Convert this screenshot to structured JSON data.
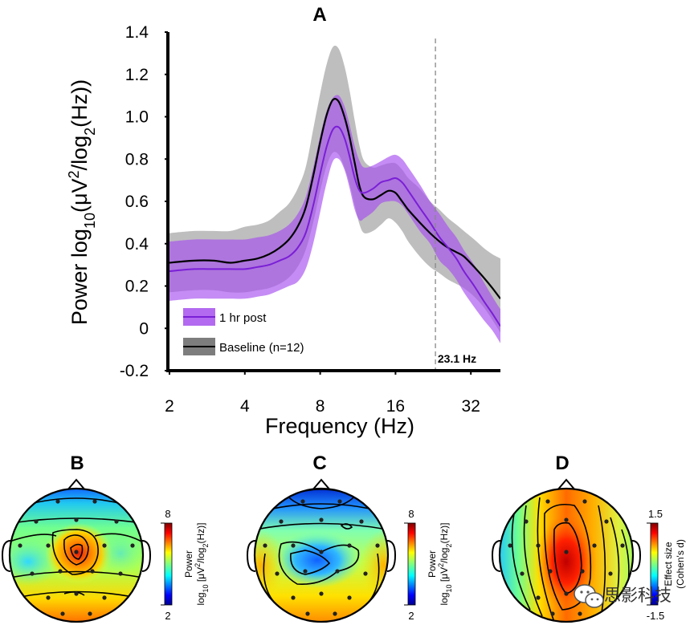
{
  "chart_data": [
    {
      "panel": "A",
      "type": "line",
      "xlabel": "Frequency (Hz)",
      "ylabel_parts": [
        "Power log",
        "10",
        "(μV",
        "2",
        "/log",
        "2",
        "(Hz))"
      ],
      "x_scale": "log2",
      "xlim": [
        2,
        42
      ],
      "ylim": [
        -0.2,
        1.4
      ],
      "xticks": [
        "2",
        "4",
        "8",
        "16",
        "32"
      ],
      "yticks": [
        "-0.2",
        "0",
        "0.2",
        "0.4",
        "0.6",
        "0.8",
        "1.0",
        "1.2",
        "1.4"
      ],
      "marker": {
        "x": 23.1,
        "label": "23.1 Hz",
        "style": "dashed"
      },
      "series": [
        {
          "name": "Baseline (n=12)",
          "color": "#000000",
          "band_color": "#b3b3b3",
          "x": [
            2,
            2.5,
            3,
            3.5,
            4,
            4.5,
            5,
            5.5,
            6,
            6.5,
            7,
            7.5,
            8,
            8.5,
            9,
            9.5,
            10,
            10.5,
            11,
            11.5,
            12,
            13,
            14,
            15,
            16,
            17,
            18,
            20,
            22,
            24,
            26,
            28,
            30,
            33,
            36,
            39,
            42
          ],
          "mean": [
            0.31,
            0.32,
            0.32,
            0.31,
            0.32,
            0.33,
            0.35,
            0.38,
            0.42,
            0.48,
            0.57,
            0.72,
            0.88,
            1.01,
            1.08,
            1.07,
            1.0,
            0.9,
            0.78,
            0.67,
            0.62,
            0.61,
            0.63,
            0.65,
            0.64,
            0.6,
            0.56,
            0.5,
            0.45,
            0.41,
            0.38,
            0.36,
            0.34,
            0.29,
            0.24,
            0.19,
            0.14
          ],
          "upper": [
            0.45,
            0.46,
            0.46,
            0.46,
            0.48,
            0.49,
            0.51,
            0.55,
            0.59,
            0.66,
            0.76,
            0.94,
            1.11,
            1.25,
            1.33,
            1.32,
            1.24,
            1.12,
            0.98,
            0.86,
            0.79,
            0.76,
            0.77,
            0.78,
            0.78,
            0.75,
            0.71,
            0.66,
            0.6,
            0.56,
            0.52,
            0.49,
            0.46,
            0.42,
            0.38,
            0.35,
            0.33
          ],
          "lower": [
            0.17,
            0.18,
            0.18,
            0.17,
            0.17,
            0.18,
            0.19,
            0.21,
            0.24,
            0.29,
            0.37,
            0.5,
            0.65,
            0.77,
            0.83,
            0.82,
            0.76,
            0.68,
            0.58,
            0.49,
            0.45,
            0.46,
            0.49,
            0.52,
            0.5,
            0.46,
            0.41,
            0.34,
            0.29,
            0.26,
            0.23,
            0.21,
            0.19,
            0.15,
            0.1,
            0.04,
            -0.02
          ]
        },
        {
          "name": "1 hr post",
          "color": "#7a1fd6",
          "band_color": "#b36af0",
          "x": [
            2,
            2.5,
            3,
            3.5,
            4,
            4.5,
            5,
            5.5,
            6,
            6.5,
            7,
            7.5,
            8,
            8.5,
            9,
            9.5,
            10,
            10.5,
            11,
            11.5,
            12,
            13,
            14,
            15,
            16,
            17,
            18,
            20,
            22,
            24,
            26,
            28,
            30,
            33,
            36,
            39,
            42
          ],
          "mean": [
            0.27,
            0.28,
            0.28,
            0.28,
            0.28,
            0.29,
            0.3,
            0.32,
            0.34,
            0.38,
            0.45,
            0.58,
            0.73,
            0.86,
            0.94,
            0.95,
            0.9,
            0.81,
            0.71,
            0.65,
            0.64,
            0.66,
            0.69,
            0.7,
            0.71,
            0.69,
            0.65,
            0.57,
            0.5,
            0.43,
            0.38,
            0.33,
            0.27,
            0.2,
            0.13,
            0.07,
            0.01
          ],
          "upper": [
            0.41,
            0.42,
            0.42,
            0.42,
            0.42,
            0.43,
            0.44,
            0.46,
            0.49,
            0.54,
            0.62,
            0.76,
            0.91,
            1.03,
            1.09,
            1.1,
            1.05,
            0.96,
            0.86,
            0.79,
            0.76,
            0.77,
            0.79,
            0.81,
            0.82,
            0.8,
            0.76,
            0.68,
            0.6,
            0.54,
            0.48,
            0.43,
            0.37,
            0.3,
            0.22,
            0.15,
            0.09
          ],
          "lower": [
            0.13,
            0.14,
            0.14,
            0.14,
            0.14,
            0.15,
            0.16,
            0.18,
            0.2,
            0.22,
            0.28,
            0.4,
            0.55,
            0.69,
            0.79,
            0.8,
            0.75,
            0.66,
            0.56,
            0.51,
            0.52,
            0.55,
            0.59,
            0.6,
            0.6,
            0.58,
            0.54,
            0.46,
            0.4,
            0.32,
            0.28,
            0.23,
            0.17,
            0.1,
            0.04,
            -0.01,
            -0.07
          ]
        }
      ]
    },
    {
      "panel": "B",
      "type": "heatmap",
      "description_kind": "scalp topography",
      "colorbar": {
        "min": "2",
        "max": "8",
        "label_parts": [
          "Power",
          "log",
          "10",
          " [μV",
          "2",
          "/log",
          "2",
          "(Hz)]"
        ]
      }
    },
    {
      "panel": "C",
      "type": "heatmap",
      "description_kind": "scalp topography",
      "colorbar": {
        "min": "2",
        "max": "8",
        "label_parts": [
          "Power",
          "log",
          "10",
          " [μV",
          "2",
          "/log",
          "2",
          "(Hz)]"
        ]
      }
    },
    {
      "panel": "D",
      "type": "heatmap",
      "description_kind": "scalp topography",
      "colorbar": {
        "min": "-1.5",
        "max": "1.5",
        "label_parts": [
          "Effect size",
          "(Cohen's d)"
        ]
      }
    }
  ],
  "watermark": {
    "icon": "wechat-logo-icon",
    "text": "思影科技"
  }
}
